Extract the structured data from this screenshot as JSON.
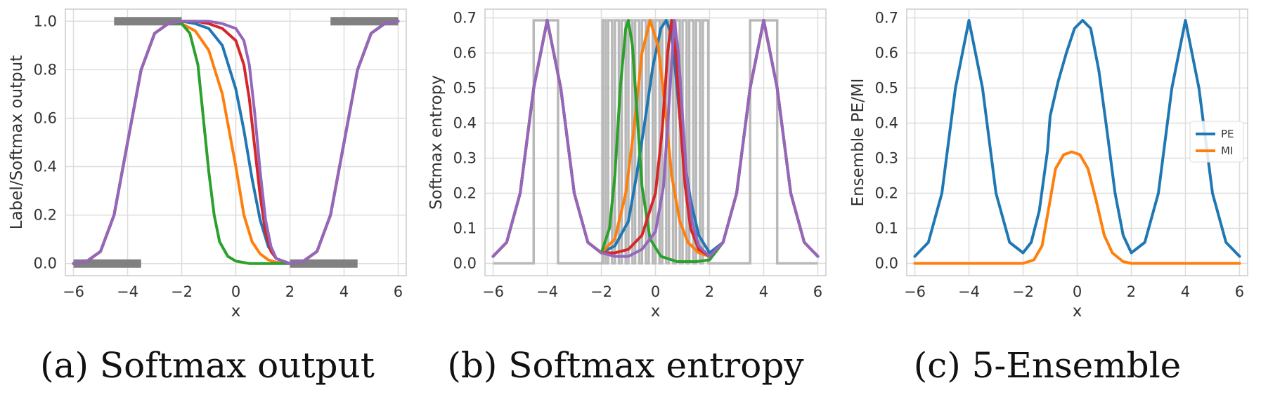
{
  "chart_data": [
    {
      "type": "line",
      "caption": "(a) Softmax output",
      "xlabel": "x",
      "ylabel": "Label/Softmax output",
      "xlim": [
        -6.3,
        6.3
      ],
      "ylim": [
        -0.05,
        1.05
      ],
      "xticks": [
        -6,
        -4,
        -2,
        0,
        2,
        4,
        6
      ],
      "xticklabels": [
        "−6",
        "−4",
        "−2",
        "0",
        "2",
        "4",
        "6"
      ],
      "yticks": [
        0.0,
        0.2,
        0.4,
        0.6,
        0.8,
        1.0
      ],
      "yticklabels": [
        "0.0",
        "0.2",
        "0.4",
        "0.6",
        "0.8",
        "1.0"
      ],
      "grid": true,
      "label_bars": [
        {
          "x": [
            -6.0,
            -3.5
          ],
          "y": 0.0
        },
        {
          "x": [
            -4.5,
            -2.0
          ],
          "y": 1.0
        },
        {
          "x": [
            2.0,
            4.5
          ],
          "y": 0.0
        },
        {
          "x": [
            3.5,
            6.0
          ],
          "y": 1.0
        }
      ],
      "series": [
        {
          "color": "#1f77b4",
          "x": [
            -6,
            -5.5,
            -5,
            -4.5,
            -4,
            -3.5,
            -3,
            -2.5,
            -2,
            -1.5,
            -1,
            -0.5,
            0,
            0.3,
            0.6,
            0.9,
            1.2,
            1.5,
            2,
            2.5,
            3,
            3.5,
            4,
            4.5,
            5,
            5.5,
            6
          ],
          "y": [
            0.0,
            0.01,
            0.05,
            0.2,
            0.5,
            0.8,
            0.95,
            0.99,
            1.0,
            0.99,
            0.97,
            0.9,
            0.72,
            0.55,
            0.35,
            0.18,
            0.07,
            0.02,
            0.0,
            0.01,
            0.05,
            0.2,
            0.5,
            0.8,
            0.95,
            0.99,
            1.0
          ]
        },
        {
          "color": "#ff7f0e",
          "x": [
            -6,
            -5.5,
            -5,
            -4.5,
            -4,
            -3.5,
            -3,
            -2.5,
            -2,
            -1.5,
            -1,
            -0.5,
            0,
            0.3,
            0.6,
            0.9,
            1.2,
            1.5,
            2,
            2.5,
            3,
            3.5,
            4,
            4.5,
            5,
            5.5,
            6
          ],
          "y": [
            0.0,
            0.01,
            0.05,
            0.2,
            0.5,
            0.8,
            0.95,
            0.99,
            0.99,
            0.96,
            0.88,
            0.7,
            0.4,
            0.2,
            0.09,
            0.04,
            0.015,
            0.005,
            0.0,
            0.01,
            0.05,
            0.2,
            0.5,
            0.8,
            0.95,
            0.99,
            1.0
          ]
        },
        {
          "color": "#2ca02c",
          "x": [
            -6,
            -5.5,
            -5,
            -4.5,
            -4,
            -3.5,
            -3,
            -2.5,
            -2,
            -1.7,
            -1.4,
            -1.2,
            -1,
            -0.8,
            -0.6,
            -0.3,
            0,
            0.5,
            1,
            2,
            2.5,
            3,
            3.5,
            4,
            4.5,
            5,
            5.5,
            6
          ],
          "y": [
            0.0,
            0.01,
            0.05,
            0.2,
            0.5,
            0.8,
            0.95,
            0.99,
            0.99,
            0.95,
            0.82,
            0.6,
            0.38,
            0.2,
            0.09,
            0.03,
            0.01,
            0.0,
            0.0,
            0.0,
            0.01,
            0.05,
            0.2,
            0.5,
            0.8,
            0.95,
            0.99,
            1.0
          ]
        },
        {
          "color": "#d62728",
          "x": [
            -6,
            -5.5,
            -5,
            -4.5,
            -4,
            -3.5,
            -3,
            -2.5,
            -2,
            -1.5,
            -1,
            -0.5,
            0,
            0.3,
            0.5,
            0.7,
            0.9,
            1.1,
            1.3,
            1.5,
            2,
            2.5,
            3,
            3.5,
            4,
            4.5,
            5,
            5.5,
            6
          ],
          "y": [
            0.0,
            0.01,
            0.05,
            0.2,
            0.5,
            0.8,
            0.95,
            0.99,
            1.0,
            1.0,
            0.99,
            0.97,
            0.92,
            0.82,
            0.68,
            0.48,
            0.28,
            0.13,
            0.05,
            0.02,
            0.0,
            0.01,
            0.05,
            0.2,
            0.5,
            0.8,
            0.95,
            0.99,
            1.0
          ]
        },
        {
          "color": "#9467bd",
          "x": [
            -6,
            -5.5,
            -5,
            -4.5,
            -4,
            -3.5,
            -3,
            -2.5,
            -2,
            -1.5,
            -1,
            -0.5,
            0,
            0.3,
            0.5,
            0.7,
            0.9,
            1.1,
            1.3,
            1.5,
            2,
            2.5,
            3,
            3.5,
            4,
            4.5,
            5,
            5.5,
            6
          ],
          "y": [
            0.0,
            0.01,
            0.05,
            0.2,
            0.5,
            0.8,
            0.95,
            0.99,
            1.0,
            1.0,
            1.0,
            0.99,
            0.97,
            0.92,
            0.82,
            0.62,
            0.38,
            0.18,
            0.07,
            0.02,
            0.0,
            0.01,
            0.05,
            0.2,
            0.5,
            0.8,
            0.95,
            0.99,
            1.0
          ]
        }
      ]
    },
    {
      "type": "line",
      "caption": "(b) Softmax entropy",
      "xlabel": "x",
      "ylabel": "Softmax entropy",
      "xlim": [
        -6.3,
        6.3
      ],
      "ylim": [
        -0.035,
        0.725
      ],
      "xticks": [
        -6,
        -4,
        -2,
        0,
        2,
        4,
        6
      ],
      "xticklabels": [
        "−6",
        "−4",
        "−2",
        "0",
        "2",
        "4",
        "6"
      ],
      "yticks": [
        0.0,
        0.1,
        0.2,
        0.3,
        0.4,
        0.5,
        0.6,
        0.7
      ],
      "yticklabels": [
        "0.0",
        "0.1",
        "0.2",
        "0.3",
        "0.4",
        "0.5",
        "0.6",
        "0.7"
      ],
      "grid": true,
      "label_entropy": {
        "color": "#b8b8b8",
        "x": [
          -6,
          -4.5,
          -4.5,
          -3.6,
          -3.6,
          -1.95,
          -1.95,
          -1.85,
          -1.85,
          -1.75,
          -1.75,
          -1.6,
          -1.6,
          -1.5,
          -1.5,
          -1.35,
          -1.35,
          -1.25,
          -1.25,
          -1.1,
          -1.1,
          -1.0,
          -1.0,
          -0.85,
          -0.85,
          -0.75,
          -0.75,
          -0.6,
          -0.6,
          -0.5,
          -0.5,
          -0.35,
          -0.35,
          -0.25,
          -0.25,
          -0.1,
          -0.1,
          0.0,
          0.0,
          0.15,
          0.15,
          0.25,
          0.25,
          0.4,
          0.4,
          0.5,
          0.5,
          0.65,
          0.65,
          0.75,
          0.75,
          0.9,
          0.9,
          1.0,
          1.0,
          1.15,
          1.15,
          1.25,
          1.25,
          1.4,
          1.4,
          1.5,
          1.5,
          1.65,
          1.65,
          1.75,
          1.75,
          1.95,
          1.95,
          3.5,
          3.5,
          4.5,
          4.5,
          6
        ],
        "y": [
          0,
          0,
          0.693,
          0.693,
          0,
          0,
          0.693,
          0.693,
          0,
          0,
          0.693,
          0.693,
          0,
          0,
          0.693,
          0.693,
          0,
          0,
          0.693,
          0.693,
          0,
          0,
          0.693,
          0.693,
          0,
          0,
          0.693,
          0.693,
          0,
          0,
          0.693,
          0.693,
          0,
          0,
          0.693,
          0.693,
          0,
          0,
          0.693,
          0.693,
          0,
          0,
          0.693,
          0.693,
          0,
          0,
          0.693,
          0.693,
          0,
          0,
          0.693,
          0.693,
          0,
          0,
          0.693,
          0.693,
          0,
          0,
          0.693,
          0.693,
          0,
          0,
          0.693,
          0.693,
          0,
          0,
          0.693,
          0.693,
          0,
          0,
          0.693,
          0.693,
          0,
          0
        ]
      },
      "series": [
        {
          "color": "#1f77b4",
          "x": [
            -6,
            -5.5,
            -5,
            -4.5,
            -4,
            -3.5,
            -3,
            -2.5,
            -2,
            -1.5,
            -1,
            -0.7,
            -0.4,
            -0.1,
            0.2,
            0.4,
            0.6,
            0.8,
            1.0,
            1.3,
            1.6,
            2,
            2.5,
            3,
            3.5,
            4,
            4.5,
            5,
            5.5,
            6
          ],
          "y": [
            0.02,
            0.06,
            0.2,
            0.5,
            0.693,
            0.5,
            0.2,
            0.06,
            0.03,
            0.05,
            0.12,
            0.25,
            0.4,
            0.56,
            0.67,
            0.693,
            0.65,
            0.5,
            0.33,
            0.18,
            0.08,
            0.03,
            0.06,
            0.2,
            0.5,
            0.693,
            0.5,
            0.2,
            0.06,
            0.02
          ]
        },
        {
          "color": "#ff7f0e",
          "x": [
            -6,
            -5.5,
            -5,
            -4.5,
            -4,
            -3.5,
            -3,
            -2.5,
            -2,
            -1.5,
            -1.1,
            -0.8,
            -0.5,
            -0.2,
            0.1,
            0.35,
            0.6,
            0.9,
            1.2,
            1.6,
            2,
            2.5,
            3,
            3.5,
            4,
            4.5,
            5,
            5.5,
            6
          ],
          "y": [
            0.02,
            0.06,
            0.2,
            0.5,
            0.693,
            0.5,
            0.2,
            0.06,
            0.03,
            0.07,
            0.2,
            0.38,
            0.6,
            0.693,
            0.62,
            0.45,
            0.25,
            0.12,
            0.06,
            0.03,
            0.02,
            0.06,
            0.2,
            0.5,
            0.693,
            0.5,
            0.2,
            0.06,
            0.02
          ]
        },
        {
          "color": "#2ca02c",
          "x": [
            -6,
            -5.5,
            -5,
            -4.5,
            -4,
            -3.5,
            -3,
            -2.5,
            -2,
            -1.7,
            -1.5,
            -1.3,
            -1.1,
            -1.0,
            -0.85,
            -0.7,
            -0.5,
            -0.2,
            0.2,
            0.8,
            1.5,
            2,
            2.5,
            3,
            3.5,
            4,
            4.5,
            5,
            5.5,
            6
          ],
          "y": [
            0.02,
            0.06,
            0.2,
            0.5,
            0.693,
            0.5,
            0.2,
            0.06,
            0.03,
            0.1,
            0.25,
            0.5,
            0.67,
            0.693,
            0.62,
            0.45,
            0.22,
            0.07,
            0.02,
            0.005,
            0.005,
            0.01,
            0.06,
            0.2,
            0.5,
            0.693,
            0.5,
            0.2,
            0.06,
            0.02
          ]
        },
        {
          "color": "#d62728",
          "x": [
            -6,
            -5.5,
            -5,
            -4.5,
            -4,
            -3.5,
            -3,
            -2.5,
            -2,
            -1.5,
            -1,
            -0.5,
            0,
            0.25,
            0.45,
            0.6,
            0.75,
            0.9,
            1.1,
            1.3,
            1.6,
            2,
            2.5,
            3,
            3.5,
            4,
            4.5,
            5,
            5.5,
            6
          ],
          "y": [
            0.02,
            0.06,
            0.2,
            0.5,
            0.693,
            0.5,
            0.2,
            0.06,
            0.03,
            0.03,
            0.04,
            0.08,
            0.2,
            0.38,
            0.6,
            0.693,
            0.6,
            0.42,
            0.22,
            0.1,
            0.04,
            0.02,
            0.06,
            0.2,
            0.5,
            0.693,
            0.5,
            0.2,
            0.06,
            0.02
          ]
        },
        {
          "color": "#9467bd",
          "x": [
            -6,
            -5.5,
            -5,
            -4.5,
            -4,
            -3.5,
            -3,
            -2.5,
            -2,
            -1.5,
            -1,
            -0.5,
            0,
            0.3,
            0.5,
            0.7,
            0.85,
            1.0,
            1.15,
            1.35,
            1.6,
            2,
            2.5,
            3,
            3.5,
            4,
            4.5,
            5,
            5.5,
            6
          ],
          "y": [
            0.02,
            0.06,
            0.2,
            0.5,
            0.693,
            0.5,
            0.2,
            0.06,
            0.03,
            0.02,
            0.02,
            0.04,
            0.09,
            0.22,
            0.45,
            0.693,
            0.6,
            0.42,
            0.25,
            0.12,
            0.05,
            0.02,
            0.06,
            0.2,
            0.5,
            0.693,
            0.5,
            0.2,
            0.06,
            0.02
          ]
        }
      ]
    },
    {
      "type": "line",
      "caption": "(c) 5-Ensemble",
      "xlabel": "x",
      "ylabel": "Ensemble PE/MI",
      "xlim": [
        -6.3,
        6.3
      ],
      "ylim": [
        -0.035,
        0.725
      ],
      "xticks": [
        -6,
        -4,
        -2,
        0,
        2,
        4,
        6
      ],
      "xticklabels": [
        "−6",
        "−4",
        "−2",
        "0",
        "2",
        "4",
        "6"
      ],
      "yticks": [
        0.0,
        0.1,
        0.2,
        0.3,
        0.4,
        0.5,
        0.6,
        0.7
      ],
      "yticklabels": [
        "0.0",
        "0.1",
        "0.2",
        "0.3",
        "0.4",
        "0.5",
        "0.6",
        "0.7"
      ],
      "grid": true,
      "legend_position": "center-right",
      "series": [
        {
          "name": "PE",
          "color": "#1f77b4",
          "x": [
            -6,
            -5.5,
            -5,
            -4.5,
            -4,
            -3.5,
            -3,
            -2.5,
            -2,
            -1.7,
            -1.4,
            -1.1,
            -1.0,
            -0.7,
            -0.4,
            -0.1,
            0.2,
            0.5,
            0.8,
            1.1,
            1.4,
            1.7,
            2,
            2.5,
            3,
            3.5,
            4,
            4.5,
            5,
            5.5,
            6
          ],
          "y": [
            0.02,
            0.06,
            0.2,
            0.5,
            0.693,
            0.5,
            0.2,
            0.06,
            0.03,
            0.06,
            0.15,
            0.32,
            0.42,
            0.52,
            0.6,
            0.67,
            0.693,
            0.67,
            0.55,
            0.38,
            0.2,
            0.08,
            0.03,
            0.06,
            0.2,
            0.5,
            0.693,
            0.5,
            0.2,
            0.06,
            0.02
          ]
        },
        {
          "name": "MI",
          "color": "#ff7f0e",
          "x": [
            -6,
            -3,
            -2,
            -1.6,
            -1.3,
            -1.0,
            -0.8,
            -0.5,
            -0.2,
            0.1,
            0.4,
            0.7,
            1.0,
            1.3,
            1.7,
            2,
            3,
            6
          ],
          "y": [
            0.0,
            0.0,
            0.0,
            0.01,
            0.05,
            0.18,
            0.27,
            0.31,
            0.318,
            0.31,
            0.27,
            0.18,
            0.08,
            0.03,
            0.005,
            0.0,
            0.0,
            0.0
          ]
        }
      ]
    }
  ]
}
